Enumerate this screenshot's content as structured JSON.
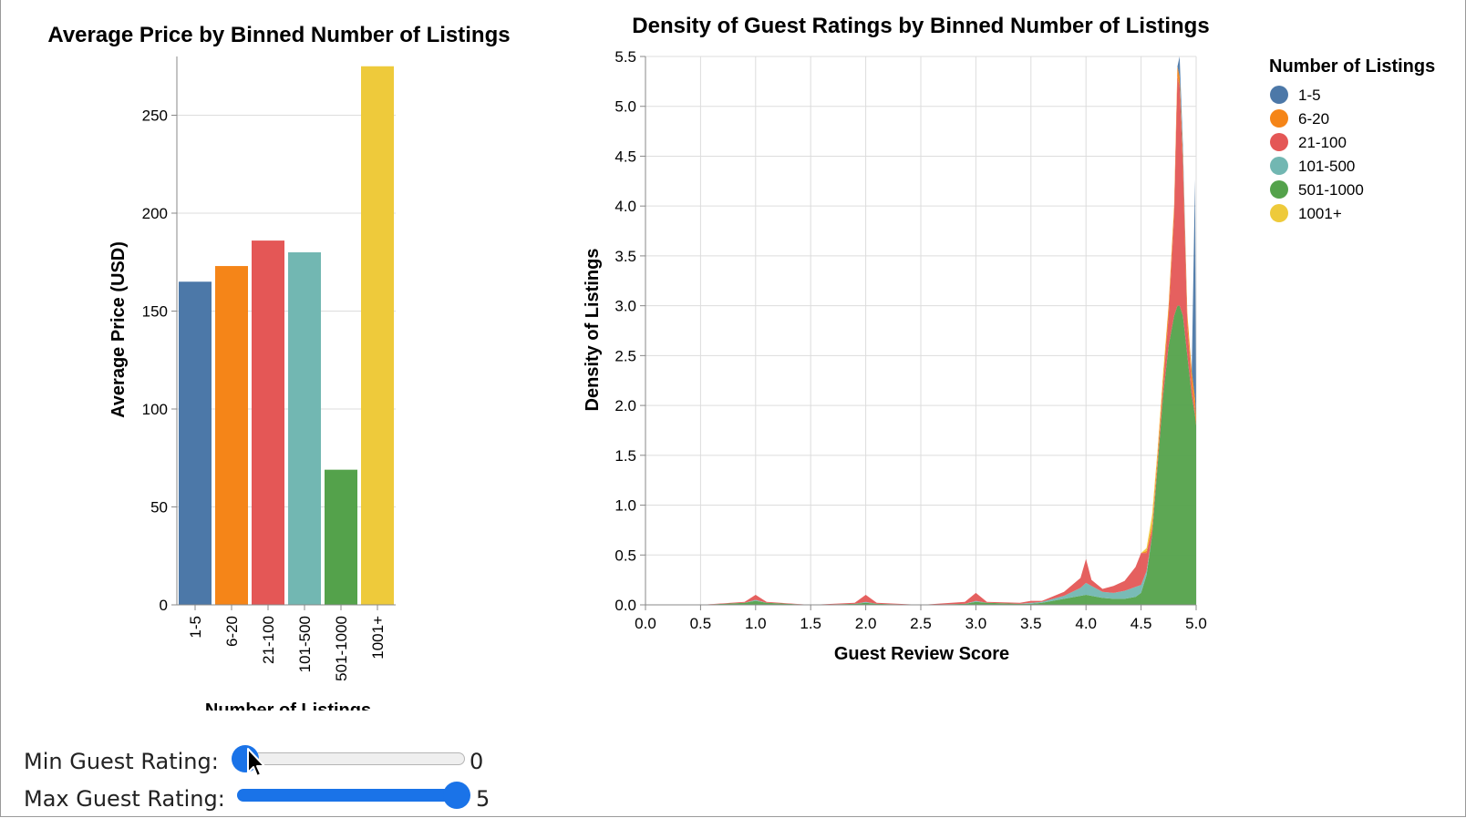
{
  "chart_data": [
    {
      "type": "bar",
      "title": "Average Price by Binned Number of Listings",
      "xlabel": "Number of Listings",
      "ylabel": "Average Price (USD)",
      "categories": [
        "1-5",
        "6-20",
        "21-100",
        "101-500",
        "501-1000",
        "1001+"
      ],
      "values": [
        165,
        173,
        186,
        180,
        69,
        275
      ],
      "colors": [
        "#4c78a8",
        "#f58518",
        "#e45756",
        "#72b7b2",
        "#54a24b",
        "#eeca3b"
      ],
      "ylim": [
        0,
        280
      ],
      "yticks": [
        0,
        50,
        100,
        150,
        200,
        250
      ],
      "grid": true
    },
    {
      "type": "area",
      "stacked": true,
      "title": "Density of Guest Ratings by Binned Number of Listings",
      "xlabel": "Guest Review Score",
      "ylabel": "Density of Listings",
      "xlim": [
        0,
        5
      ],
      "ylim": [
        0,
        5.5
      ],
      "xticks": [
        "0.0",
        "0.5",
        "1.0",
        "1.5",
        "2.0",
        "2.5",
        "3.0",
        "3.5",
        "4.0",
        "4.5",
        "5.0"
      ],
      "yticks": [
        "0.0",
        "0.5",
        "1.0",
        "1.5",
        "2.0",
        "2.5",
        "3.0",
        "3.5",
        "4.0",
        "4.5",
        "5.0",
        "5.5"
      ],
      "grid": true,
      "legend_title": "Number of Listings",
      "legend_position": "top-right",
      "x": [
        0,
        0.5,
        0.9,
        1.0,
        1.1,
        1.5,
        1.9,
        2.0,
        2.1,
        2.5,
        2.9,
        3.0,
        3.1,
        3.4,
        3.5,
        3.6,
        3.8,
        3.95,
        4.0,
        4.05,
        4.15,
        4.25,
        4.35,
        4.45,
        4.5,
        4.55,
        4.6,
        4.65,
        4.7,
        4.75,
        4.8,
        4.83,
        4.85,
        4.88,
        4.92,
        4.96,
        4.99,
        5.0
      ],
      "series": [
        {
          "name": "501-1000",
          "color": "#54a24b",
          "values": [
            0,
            0,
            0.02,
            0.04,
            0.02,
            0,
            0.01,
            0.02,
            0.01,
            0,
            0.01,
            0.03,
            0.02,
            0.01,
            0.01,
            0.02,
            0.06,
            0.09,
            0.1,
            0.09,
            0.07,
            0.06,
            0.06,
            0.08,
            0.12,
            0.3,
            0.7,
            1.4,
            2.1,
            2.6,
            2.9,
            3.0,
            3.0,
            2.9,
            2.5,
            2.1,
            1.9,
            1.8
          ]
        },
        {
          "name": "101-500",
          "color": "#72b7b2",
          "values": [
            0,
            0,
            0,
            0.01,
            0,
            0,
            0,
            0.01,
            0,
            0,
            0,
            0.01,
            0,
            0,
            0.01,
            0.01,
            0.03,
            0.08,
            0.12,
            0.1,
            0.06,
            0.06,
            0.08,
            0.1,
            0.08,
            0.04,
            0,
            0,
            0,
            0,
            0,
            0,
            0,
            0,
            0,
            0,
            0,
            0
          ]
        },
        {
          "name": "21-100",
          "color": "#e45756",
          "values": [
            0,
            0,
            0.01,
            0.05,
            0.01,
            0,
            0.01,
            0.07,
            0.01,
            0,
            0.02,
            0.08,
            0.01,
            0.01,
            0.02,
            0.01,
            0.04,
            0.1,
            0.24,
            0.06,
            0.03,
            0.07,
            0.1,
            0.2,
            0.32,
            0.18,
            0.05,
            0.05,
            0.1,
            0.3,
            1.0,
            2.3,
            2.2,
            1.5,
            0.3,
            0.1,
            0.05,
            0
          ]
        },
        {
          "name": "6-20",
          "color": "#f58518",
          "values": [
            0,
            0,
            0,
            0,
            0,
            0,
            0,
            0,
            0,
            0,
            0,
            0,
            0,
            0,
            0,
            0,
            0,
            0,
            0,
            0,
            0,
            0,
            0,
            0,
            0,
            0.02,
            0.05,
            0.06,
            0.08,
            0.1,
            0.1,
            0.1,
            0.1,
            0.1,
            0.12,
            0.14,
            0.12,
            0.1
          ]
        },
        {
          "name": "1-5",
          "color": "#4c78a8",
          "values": [
            0,
            0,
            0,
            0,
            0,
            0,
            0,
            0,
            0,
            0,
            0,
            0,
            0,
            0,
            0,
            0,
            0,
            0,
            0,
            0,
            0,
            0,
            0,
            0,
            0,
            0,
            0,
            0,
            0,
            0,
            0,
            0,
            0.2,
            0.1,
            0,
            0,
            2.2,
            0
          ]
        },
        {
          "name": "1001+",
          "color": "#eeca3b",
          "values": [
            0,
            0,
            0,
            0,
            0,
            0,
            0,
            0,
            0,
            0,
            0,
            0,
            0,
            0,
            0,
            0,
            0,
            0,
            0,
            0,
            0,
            0,
            0,
            0,
            0,
            0.03,
            0.1,
            0.05,
            0.05,
            0,
            0,
            0,
            0,
            0,
            0,
            0,
            0,
            0
          ]
        }
      ],
      "legend_order": [
        "1-5",
        "6-20",
        "21-100",
        "101-500",
        "501-1000",
        "1001+"
      ]
    }
  ],
  "controls": {
    "min_label": "Min Guest Rating:",
    "min_value": "0",
    "min_fraction": 0,
    "max_label": "Max Guest Rating:",
    "max_value": "5",
    "max_fraction": 1,
    "accent": "#1a73e8"
  }
}
